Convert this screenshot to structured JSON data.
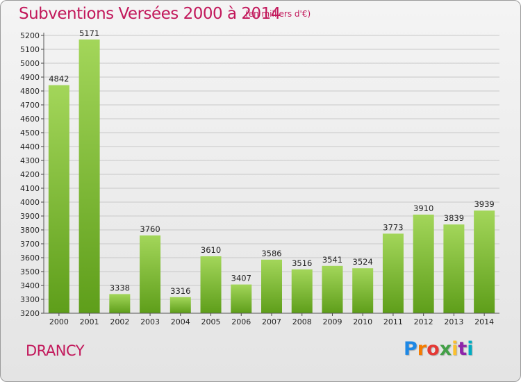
{
  "header": {
    "title": "Subventions Versées 2000 à 2014",
    "subtitle": "(en milliers d'€)"
  },
  "footer": {
    "commune": "DRANCY",
    "logo_text": "Proxiti",
    "logo_colors": [
      "#1e88e5",
      "#f57c00",
      "#e53935",
      "#43a047",
      "#fbc02d",
      "#8e24aa",
      "#00acc1"
    ]
  },
  "colors": {
    "title": "#c2185b",
    "bar_top": "#a3d65a",
    "bar_bottom": "#5e9e1a",
    "grid": "#c8c8c8"
  },
  "chart_data": {
    "type": "bar",
    "title": "Subventions Versées 2000 à 2014",
    "subtitle": "(en milliers d'€)",
    "categories": [
      "2000",
      "2001",
      "2002",
      "2003",
      "2004",
      "2005",
      "2006",
      "2007",
      "2008",
      "2009",
      "2010",
      "2011",
      "2012",
      "2013",
      "2014"
    ],
    "values": [
      4842,
      5171,
      3338,
      3760,
      3316,
      3610,
      3407,
      3586,
      3516,
      3541,
      3524,
      3773,
      3910,
      3839,
      3939
    ],
    "ylim": [
      3200,
      5200
    ],
    "ytick_step": 100,
    "grid": true,
    "legend": "none"
  }
}
